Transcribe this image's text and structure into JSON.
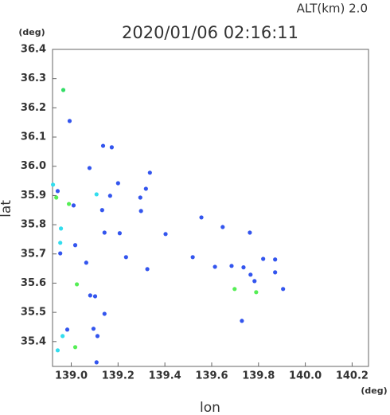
{
  "chart_data": {
    "type": "scatter",
    "title": "2020/01/06 02:16:11",
    "subtitle": "ALT(km) 2.0",
    "x_label": "lon",
    "y_label": "lat",
    "x_unit": "(deg)",
    "y_unit": "(deg)",
    "xlim": [
      138.92,
      140.27
    ],
    "ylim": [
      35.315,
      36.4
    ],
    "xticks": [
      {
        "value": 139.0,
        "label": "139.0"
      },
      139.2,
      139.4,
      139.6,
      139.8,
      {
        "value": 140.0,
        "label": "140.0"
      },
      140.2
    ],
    "yticks": [
      35.4,
      35.5,
      35.6,
      35.7,
      35.8,
      35.9,
      {
        "value": 36.0,
        "label": "36.0"
      },
      36.1,
      36.2,
      36.3,
      36.4
    ],
    "x": [
      138.966,
      138.993,
      138.922,
      138.942,
      138.936,
      139.01,
      138.99,
      139.078,
      139.108,
      139.136,
      139.173,
      139.132,
      138.956,
      139.017,
      138.953,
      138.953,
      139.142,
      139.207,
      139.2,
      139.295,
      139.298,
      139.403,
      139.325,
      139.024,
      139.081,
      139.102,
      139.142,
      139.095,
      139.112,
      138.983,
      138.963,
      139.017,
      138.942,
      139.108,
      139.614,
      139.685,
      139.698,
      139.736,
      139.763,
      139.82,
      139.79,
      139.766,
      139.729,
      139.783,
      139.905,
      139.871,
      139.647,
      139.556,
      139.319,
      139.166,
      139.064,
      139.234,
      139.519,
      139.336,
      139.871
    ],
    "y": [
      36.261,
      36.155,
      35.937,
      35.915,
      35.893,
      35.866,
      35.871,
      35.994,
      35.904,
      36.07,
      36.065,
      35.85,
      35.787,
      35.73,
      35.738,
      35.702,
      35.773,
      35.771,
      35.942,
      35.893,
      35.847,
      35.768,
      35.648,
      35.596,
      35.558,
      35.555,
      35.495,
      35.444,
      35.419,
      35.441,
      35.419,
      35.381,
      35.37,
      35.329,
      35.656,
      35.659,
      35.58,
      35.654,
      35.773,
      35.683,
      35.569,
      35.629,
      35.471,
      35.607,
      35.58,
      35.637,
      35.792,
      35.825,
      35.923,
      35.899,
      35.67,
      35.689,
      35.689,
      35.978,
      35.681
    ],
    "colors": [
      "#33dd66",
      "#3355ee",
      "#33ddee",
      "#3355ee",
      "#55ee55",
      "#3355ee",
      "#55ee55",
      "#3355ee",
      "#33ddee",
      "#3355ee",
      "#3355ee",
      "#3355ee",
      "#33ddee",
      "#3355ee",
      "#33ddee",
      "#3355ee",
      "#3355ee",
      "#3355ee",
      "#3355ee",
      "#3355ee",
      "#3355ee",
      "#3355ee",
      "#3355ee",
      "#55ee55",
      "#3355ee",
      "#3355ee",
      "#3355ee",
      "#3355ee",
      "#3355ee",
      "#3355ee",
      "#33ddee",
      "#55ee55",
      "#33ddee",
      "#3355ee",
      "#3355ee",
      "#3355ee",
      "#55ee55",
      "#3355ee",
      "#3355ee",
      "#3355ee",
      "#55ee55",
      "#3355ee",
      "#3355ee",
      "#3355ee",
      "#3355ee",
      "#3355ee",
      "#3355ee",
      "#3355ee",
      "#3355ee",
      "#3355ee",
      "#3355ee",
      "#3355ee",
      "#3355ee",
      "#3355ee",
      "#3355ee"
    ]
  }
}
